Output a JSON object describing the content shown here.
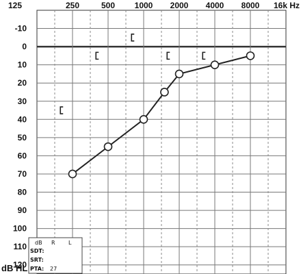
{
  "chart_data": {
    "type": "line",
    "title": "",
    "x_tick_labels": [
      "125",
      "250",
      "500",
      "1000",
      "2000",
      "4000",
      "8000",
      "16k Hz"
    ],
    "x_values_hz": [
      125,
      250,
      500,
      1000,
      2000,
      4000,
      8000,
      16000
    ],
    "x_scale": "log",
    "y_tick_labels": [
      "-10",
      "0",
      "10",
      "20",
      "30",
      "40",
      "50",
      "60",
      "70",
      "80",
      "90",
      "100",
      "110",
      "120"
    ],
    "ylabel": "dB HL",
    "ylim": [
      -20,
      125
    ],
    "y_inverted": true,
    "grid": true,
    "series": [
      {
        "marker": "circle",
        "x": [
          250,
          500,
          1000,
          1500,
          2000,
          4000,
          8000
        ],
        "y": [
          70,
          55,
          40,
          25,
          15,
          10,
          5
        ]
      },
      {
        "marker": "bracket-left",
        "connected": false,
        "x": [
          200,
          400,
          800,
          1600,
          3200
        ],
        "y": [
          35,
          5,
          -5,
          5,
          5
        ]
      }
    ]
  },
  "legend_box": {
    "header": [
      "dB",
      "R",
      "L"
    ],
    "rows": [
      {
        "label": "SDT:",
        "value": ""
      },
      {
        "label": "SRT:",
        "value": ""
      },
      {
        "label": "PTA:",
        "value": "27"
      }
    ]
  }
}
